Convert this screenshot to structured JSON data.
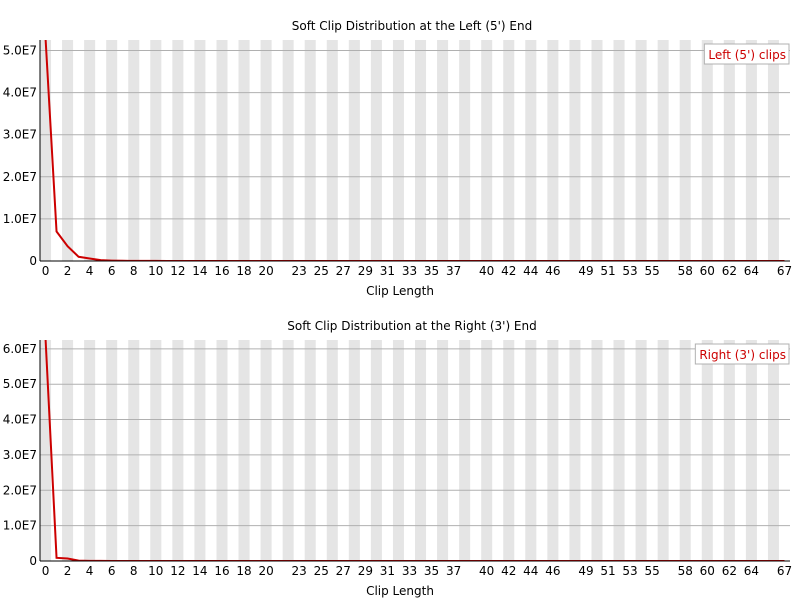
{
  "colors": {
    "series": "#cc0000",
    "stripe": "#e5e5e5",
    "grid": "#b0b0b0",
    "axis": "#000000",
    "legend_border": "#b0b0b0"
  },
  "chart_data": [
    {
      "type": "line",
      "title": "Soft Clip Distribution at the Left (5') End",
      "xlabel": "Clip Length",
      "ylabel": "",
      "xlim": [
        -0.5,
        67.5
      ],
      "ylim": [
        0,
        52500000
      ],
      "y_ticks": [
        0,
        10000000,
        20000000,
        30000000,
        40000000,
        50000000
      ],
      "y_tick_labels": [
        "0",
        "1.0E7",
        "2.0E7",
        "3.0E7",
        "4.0E7",
        "5.0E7"
      ],
      "x_tick_labels": [
        "0",
        "2",
        "4",
        "6",
        "8",
        "10",
        "12",
        "14",
        "16",
        "18",
        "20",
        "23",
        "25",
        "27",
        "29",
        "31",
        "33",
        "35",
        "37",
        "40",
        "42",
        "44",
        "46",
        "49",
        "51",
        "53",
        "55",
        "58",
        "60",
        "62",
        "64",
        "67"
      ],
      "category_stripes": true,
      "grid": true,
      "legend_position": "top-right",
      "series": [
        {
          "name": "Left (5') clips",
          "x": [
            0,
            1,
            2,
            3,
            4,
            5,
            6,
            7,
            8,
            9,
            10,
            11,
            12,
            13,
            14,
            15,
            16,
            17,
            18,
            19,
            20,
            21,
            22,
            23,
            24,
            25,
            26,
            27,
            28,
            29,
            30,
            31,
            32,
            33,
            34,
            35,
            36,
            37,
            38,
            39,
            40,
            41,
            42,
            43,
            44,
            45,
            46,
            47,
            48,
            49,
            50,
            51,
            52,
            53,
            54,
            55,
            56,
            57,
            58,
            59,
            60,
            61,
            62,
            63,
            64,
            65,
            66,
            67
          ],
          "values": [
            53000000,
            7000000,
            3500000,
            1000000,
            600000,
            200000,
            100000,
            50000,
            30000,
            20000,
            15000,
            12000,
            10000,
            8000,
            7000,
            6000,
            5000,
            5000,
            4000,
            4000,
            4000,
            3000,
            3000,
            3000,
            3000,
            3000,
            3000,
            3000,
            3000,
            3000,
            3000,
            3000,
            3000,
            3000,
            3000,
            3000,
            3000,
            3000,
            3000,
            3000,
            3000,
            3000,
            3000,
            3000,
            3000,
            3000,
            3000,
            3000,
            3000,
            3000,
            3000,
            3000,
            3000,
            3000,
            3000,
            3000,
            3000,
            3000,
            3000,
            3000,
            3000,
            3000,
            3000,
            3000,
            3000,
            3000,
            3000,
            3000
          ]
        }
      ]
    },
    {
      "type": "line",
      "title": "Soft Clip Distribution at the Right (3') End",
      "xlabel": "Clip Length",
      "ylabel": "",
      "xlim": [
        -0.5,
        67.5
      ],
      "ylim": [
        0,
        62500000
      ],
      "y_ticks": [
        0,
        10000000,
        20000000,
        30000000,
        40000000,
        50000000,
        60000000
      ],
      "y_tick_labels": [
        "0",
        "1.0E7",
        "2.0E7",
        "3.0E7",
        "4.0E7",
        "5.0E7",
        "6.0E7"
      ],
      "x_tick_labels": [
        "0",
        "2",
        "4",
        "6",
        "8",
        "10",
        "12",
        "14",
        "16",
        "18",
        "20",
        "23",
        "25",
        "27",
        "29",
        "31",
        "33",
        "35",
        "37",
        "40",
        "42",
        "44",
        "46",
        "49",
        "51",
        "53",
        "55",
        "58",
        "60",
        "62",
        "64",
        "67"
      ],
      "category_stripes": true,
      "grid": true,
      "legend_position": "top-right",
      "series": [
        {
          "name": "Right (3') clips",
          "x": [
            0,
            1,
            2,
            3,
            4,
            5,
            6,
            7,
            8,
            9,
            10,
            11,
            12,
            13,
            14,
            15,
            16,
            17,
            18,
            19,
            20,
            21,
            22,
            23,
            24,
            25,
            26,
            27,
            28,
            29,
            30,
            31,
            32,
            33,
            34,
            35,
            36,
            37,
            38,
            39,
            40,
            41,
            42,
            43,
            44,
            45,
            46,
            47,
            48,
            49,
            50,
            51,
            52,
            53,
            54,
            55,
            56,
            57,
            58,
            59,
            60,
            61,
            62,
            63,
            64,
            65,
            66,
            67
          ],
          "values": [
            63000000,
            900000,
            700000,
            100000,
            50000,
            20000,
            10000,
            8000,
            6000,
            5000,
            4000,
            3000,
            3000,
            3000,
            3000,
            3000,
            3000,
            3000,
            3000,
            3000,
            3000,
            3000,
            3000,
            3000,
            3000,
            3000,
            3000,
            3000,
            3000,
            3000,
            3000,
            3000,
            3000,
            3000,
            3000,
            3000,
            3000,
            3000,
            3000,
            3000,
            3000,
            3000,
            3000,
            3000,
            3000,
            3000,
            3000,
            3000,
            3000,
            3000,
            3000,
            3000,
            3000,
            3000,
            3000,
            3000,
            3000,
            3000,
            3000,
            3000,
            3000,
            3000,
            3000,
            3000,
            3000,
            3000,
            3000,
            3000
          ]
        }
      ]
    }
  ]
}
